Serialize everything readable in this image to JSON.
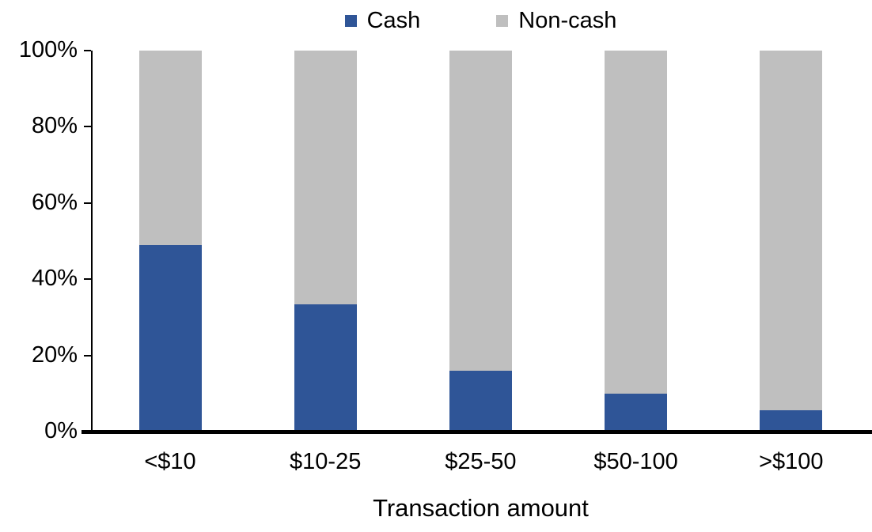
{
  "chart_data": {
    "type": "bar",
    "stacked": true,
    "title": "",
    "categories": [
      "<$10",
      "$10-25",
      "$25-50",
      "$50-100",
      ">$100"
    ],
    "series": [
      {
        "name": "Cash",
        "color": "#2F5597",
        "values": [
          49,
          33.5,
          16,
          10,
          5.5
        ]
      },
      {
        "name": "Non-cash",
        "color": "#BFBFBF",
        "values": [
          51,
          66.5,
          84,
          90,
          94.5
        ]
      }
    ],
    "xlabel": "Transaction amount",
    "ylabel": "",
    "ylim": [
      0,
      100
    ],
    "y_ticks": [
      "0%",
      "20%",
      "40%",
      "60%",
      "80%",
      "100%"
    ],
    "legend_position": "top",
    "grid": false
  },
  "colors": {
    "axis": "#000000",
    "text": "#000000",
    "background": "#FFFFFF"
  }
}
